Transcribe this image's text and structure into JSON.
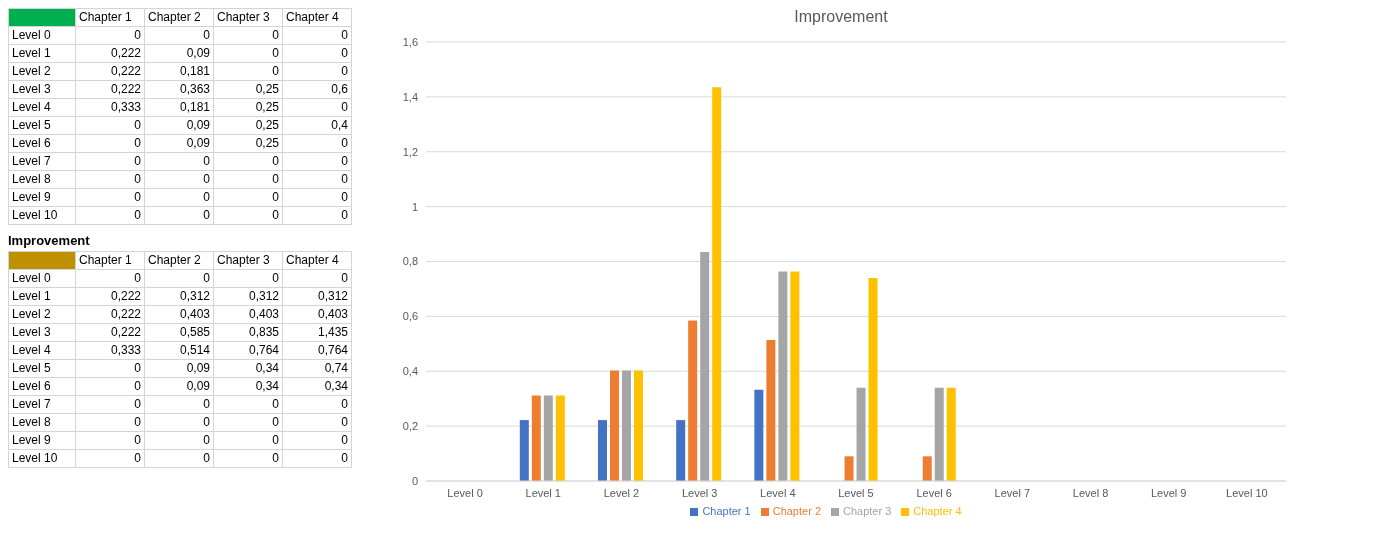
{
  "chart_data": [
    {
      "type": "heatmap",
      "categories": [
        "Chapter 1",
        "Chapter 2",
        "Chapter 3",
        "Chapter 4"
      ],
      "y_categories": [
        "Level 0",
        "Level 1",
        "Level 2",
        "Level 3",
        "Level 4",
        "Level 5",
        "Level 6",
        "Level 7",
        "Level 8",
        "Level 9",
        "Level 10"
      ],
      "cells": [
        [
          0,
          0,
          0,
          0
        ],
        [
          0.222,
          0.09,
          0,
          0
        ],
        [
          0.222,
          0.181,
          0,
          0
        ],
        [
          0.222,
          0.363,
          0.25,
          0.6
        ],
        [
          0.333,
          0.181,
          0.25,
          0
        ],
        [
          0,
          0.09,
          0.25,
          0.4
        ],
        [
          0,
          0.09,
          0.25,
          0
        ],
        [
          0,
          0,
          0,
          0
        ],
        [
          0,
          0,
          0,
          0
        ],
        [
          0,
          0,
          0,
          0
        ],
        [
          0,
          0,
          0,
          0
        ]
      ],
      "cell_labels": [
        [
          "0",
          "0",
          "0",
          "0"
        ],
        [
          "0,222",
          "0,09",
          "0",
          "0"
        ],
        [
          "0,222",
          "0,181",
          "0",
          "0"
        ],
        [
          "0,222",
          "0,363",
          "0,25",
          "0,6"
        ],
        [
          "0,333",
          "0,181",
          "0,25",
          "0"
        ],
        [
          "0",
          "0,09",
          "0,25",
          "0,4"
        ],
        [
          "0",
          "0,09",
          "0,25",
          "0"
        ],
        [
          "0",
          "0",
          "0",
          "0"
        ],
        [
          "0",
          "0",
          "0",
          "0"
        ],
        [
          "0",
          "0",
          "0",
          "0"
        ],
        [
          "0",
          "0",
          "0",
          "0"
        ]
      ]
    },
    {
      "type": "heatmap",
      "title": "Improvement",
      "categories": [
        "Chapter 1",
        "Chapter 2",
        "Chapter 3",
        "Chapter 4"
      ],
      "y_categories": [
        "Level 0",
        "Level 1",
        "Level 2",
        "Level 3",
        "Level 4",
        "Level 5",
        "Level 6",
        "Level 7",
        "Level 8",
        "Level 9",
        "Level 10"
      ],
      "cells": [
        [
          0,
          0,
          0,
          0
        ],
        [
          0.222,
          0.312,
          0.312,
          0.312
        ],
        [
          0.222,
          0.403,
          0.403,
          0.403
        ],
        [
          0.222,
          0.585,
          0.835,
          1.435
        ],
        [
          0.333,
          0.514,
          0.764,
          0.764
        ],
        [
          0,
          0.09,
          0.34,
          0.74
        ],
        [
          0,
          0.09,
          0.34,
          0.34
        ],
        [
          0,
          0,
          0,
          0
        ],
        [
          0,
          0,
          0,
          0
        ],
        [
          0,
          0,
          0,
          0
        ],
        [
          0,
          0,
          0,
          0
        ]
      ],
      "cell_labels": [
        [
          "0",
          "0",
          "0",
          "0"
        ],
        [
          "0,222",
          "0,312",
          "0,312",
          "0,312"
        ],
        [
          "0,222",
          "0,403",
          "0,403",
          "0,403"
        ],
        [
          "0,222",
          "0,585",
          "0,835",
          "1,435"
        ],
        [
          "0,333",
          "0,514",
          "0,764",
          "0,764"
        ],
        [
          "0",
          "0,09",
          "0,34",
          "0,74"
        ],
        [
          "0",
          "0,09",
          "0,34",
          "0,34"
        ],
        [
          "0",
          "0",
          "0",
          "0"
        ],
        [
          "0",
          "0",
          "0",
          "0"
        ],
        [
          "0",
          "0",
          "0",
          "0"
        ],
        [
          "0",
          "0",
          "0",
          "0"
        ]
      ]
    },
    {
      "type": "bar",
      "title": "Improvement",
      "categories": [
        "Level 0",
        "Level 1",
        "Level 2",
        "Level 3",
        "Level 4",
        "Level 5",
        "Level 6",
        "Level 7",
        "Level 8",
        "Level 9",
        "Level 10"
      ],
      "series": [
        {
          "name": "Chapter 1",
          "color": "#4472c4",
          "values": [
            0,
            0.222,
            0.222,
            0.222,
            0.333,
            0,
            0,
            0,
            0,
            0,
            0
          ]
        },
        {
          "name": "Chapter 2",
          "color": "#ed7d31",
          "values": [
            0,
            0.312,
            0.403,
            0.585,
            0.514,
            0.09,
            0.09,
            0,
            0,
            0,
            0
          ]
        },
        {
          "name": "Chapter 3",
          "color": "#a5a5a5",
          "values": [
            0,
            0.312,
            0.403,
            0.835,
            0.764,
            0.34,
            0.34,
            0,
            0,
            0,
            0
          ]
        },
        {
          "name": "Chapter 4",
          "color": "#ffc000",
          "values": [
            0,
            0.312,
            0.403,
            1.435,
            0.764,
            0.74,
            0.34,
            0,
            0,
            0,
            0
          ]
        }
      ],
      "ylim": [
        0,
        1.6
      ],
      "yticks": [
        0,
        {
          "value": 0.2,
          "label": "0,2"
        },
        {
          "value": 0.4,
          "label": "0,4"
        },
        {
          "value": 0.6,
          "label": "0,6"
        },
        {
          "value": 0.8,
          "label": "0,8"
        },
        1,
        {
          "value": 1.2,
          "label": "1,2"
        },
        {
          "value": 1.4,
          "label": "1,4"
        },
        {
          "value": 1.6,
          "label": "1,6"
        }
      ],
      "grid": "y",
      "legend": "bottom"
    }
  ]
}
